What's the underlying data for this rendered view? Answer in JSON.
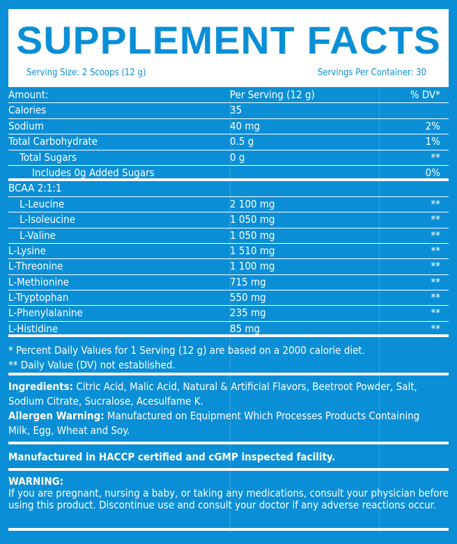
{
  "header": {
    "title": "SUPPLEMENT FACTS",
    "serving_size": "Serving Size: 2 Scoops (12 g)",
    "servings_per_container": "Servings Per Container: 30"
  },
  "table": {
    "columns": [
      "Amount:",
      "Per Serving (12 g)",
      "% DV*"
    ],
    "rows": [
      {
        "name": "Calories",
        "amount": "35",
        "dv": ""
      },
      {
        "name": "Sodium",
        "amount": "40 mg",
        "dv": "2%"
      },
      {
        "name": "Total Carbohydrate",
        "amount": "0.5 g",
        "dv": "1%"
      },
      {
        "name": "Total Sugars",
        "amount": "0 g",
        "dv": "**"
      },
      {
        "name": "Includes 0g Added Sugars",
        "amount": "",
        "dv": "0%"
      },
      {
        "name": "BCAA 2:1:1",
        "amount": "",
        "dv": ""
      },
      {
        "name": "L-Leucine",
        "amount": "2 100 mg",
        "dv": "**"
      },
      {
        "name": "L-Isoleucine",
        "amount": "1 050 mg",
        "dv": "**"
      },
      {
        "name": "L-Valine",
        "amount": "1 050 mg",
        "dv": "**"
      },
      {
        "name": "L-Lysine",
        "amount": "1 510 mg",
        "dv": "**"
      },
      {
        "name": "L-Threonine",
        "amount": "1 100 mg",
        "dv": "**"
      },
      {
        "name": "L-Methionine",
        "amount": "715 mg",
        "dv": "**"
      },
      {
        "name": "L-Tryptophan",
        "amount": "550 mg",
        "dv": "**"
      },
      {
        "name": "L-Phenylalanine",
        "amount": "235 mg",
        "dv": "**"
      },
      {
        "name": "L-Histidine",
        "amount": "85 mg",
        "dv": "**"
      }
    ]
  },
  "footnotes": [
    "* Percent Daily Values for 1 Serving (12 g) are based on a 2000 calorie diet.",
    "** Daily Value (DV) not established."
  ],
  "ingredients": {
    "label": "Ingredients:",
    "text": " Citric Acid, Malic Acid, Natural & Artificial Flavors, Beetroot Powder, Salt, Sodium Citrate, Sucralose, Acesulfame K."
  },
  "allergen": {
    "label": "Allergen Warning:",
    "text": " Manufactured on Equipment Which Processes Products Containing Milk, Egg, Wheat and Soy."
  },
  "manufactured": "Manufactured in HACCP certified and cGMP inspected facility.",
  "warning": {
    "label": "WARNING:",
    "text": "If you are pregnant, nursing a baby, or taking any medications, consult your physician before using this product. Discontinue use and consult your doctor if any adverse reactions occur."
  },
  "colors": {
    "background": "#0a8fd6",
    "header_bg": "#ffffff"
  }
}
